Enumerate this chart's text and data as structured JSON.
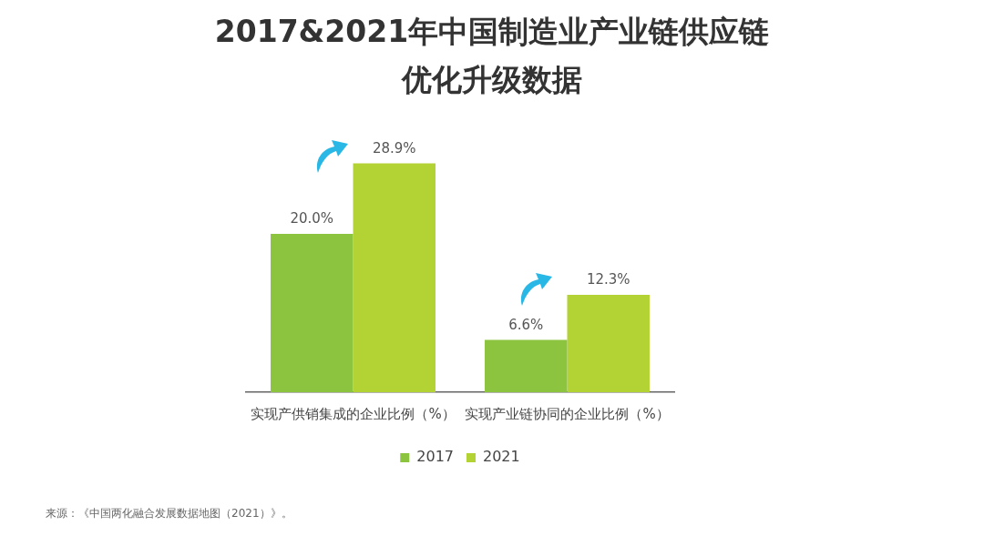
{
  "chart_data": {
    "type": "bar",
    "title": "2017&2021年中国制造业产业链供应链优化升级数据",
    "categories": [
      "实现产供销集成的企业比例（%）",
      "实现产业链协同的企业比例（%）"
    ],
    "series": [
      {
        "name": "2017",
        "color": "#8cc43f",
        "values": [
          20.0,
          6.6
        ],
        "value_labels": [
          "20.0%",
          "6.6%"
        ]
      },
      {
        "name": "2021",
        "color": "#b3d234",
        "values": [
          28.9,
          12.3
        ],
        "value_labels": [
          "28.9%",
          "12.3%"
        ]
      }
    ],
    "grid": false,
    "legend": "bottom",
    "annotations": [
      "来源：《中国两化融合发展数据地图（2021）》。"
    ]
  }
}
